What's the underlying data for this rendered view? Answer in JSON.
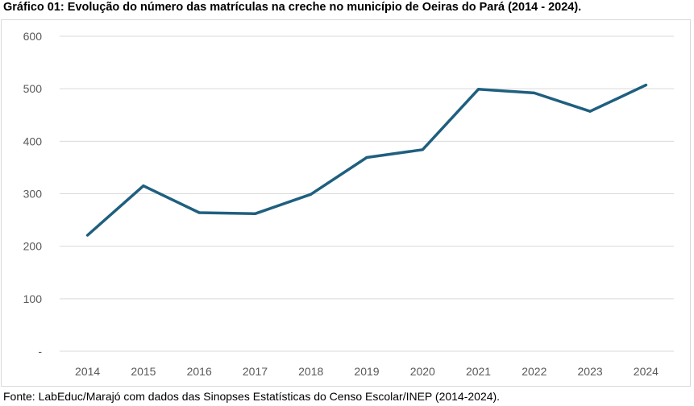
{
  "title": "Gráfico 01: Evolução do número das matrículas na creche no município de Oeiras do Pará (2014 - 2024).",
  "source": "Fonte: LabEduc/Marajó com dados das Sinopses Estatísticas do Censo Escolar/INEP (2014-2024).",
  "colors": {
    "line": "#1f5f7f",
    "grid": "#d9d9d9",
    "tick": "#595959"
  },
  "chart_data": {
    "type": "line",
    "title": "Gráfico 01: Evolução do número das matrículas na creche no município de Oeiras do Pará (2014 - 2024).",
    "xlabel": "",
    "ylabel": "",
    "categories": [
      "2014",
      "2015",
      "2016",
      "2017",
      "2018",
      "2019",
      "2020",
      "2021",
      "2022",
      "2023",
      "2024"
    ],
    "series": [
      {
        "name": "Matrículas na creche",
        "values": [
          221,
          315,
          264,
          262,
          299,
          369,
          384,
          499,
          492,
          457,
          507
        ]
      }
    ],
    "ylim": [
      0,
      600
    ],
    "yticks": [
      0,
      100,
      200,
      300,
      400,
      500,
      600
    ],
    "ytick_labels": [
      "-",
      "100",
      "200",
      "300",
      "400",
      "500",
      "600"
    ],
    "grid": true,
    "legend": "none"
  }
}
